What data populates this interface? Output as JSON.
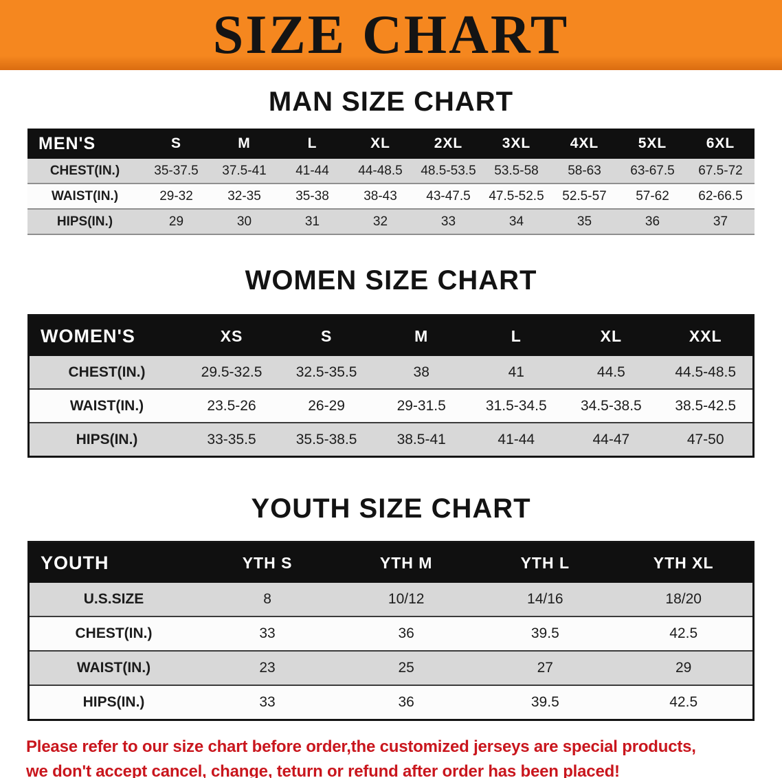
{
  "banner": {
    "title": "SIZE CHART",
    "bg_color": "#f5871f",
    "text_color": "#141414"
  },
  "chart_data": [
    {
      "type": "table",
      "title": "MAN SIZE CHART",
      "columns": [
        "MEN'S",
        "S",
        "M",
        "L",
        "XL",
        "2XL",
        "3XL",
        "4XL",
        "5XL",
        "6XL"
      ],
      "rows": [
        [
          "CHEST(IN.)",
          "35-37.5",
          "37.5-41",
          "41-44",
          "44-48.5",
          "48.5-53.5",
          "53.5-58",
          "58-63",
          "63-67.5",
          "67.5-72"
        ],
        [
          "WAIST(IN.)",
          "29-32",
          "32-35",
          "35-38",
          "38-43",
          "43-47.5",
          "47.5-52.5",
          "52.5-57",
          "57-62",
          "62-66.5"
        ],
        [
          "HIPS(IN.)",
          "29",
          "30",
          "31",
          "32",
          "33",
          "34",
          "35",
          "36",
          "37"
        ]
      ]
    },
    {
      "type": "table",
      "title": "WOMEN SIZE CHART",
      "columns": [
        "WOMEN'S",
        "XS",
        "S",
        "M",
        "L",
        "XL",
        "XXL"
      ],
      "rows": [
        [
          "CHEST(IN.)",
          "29.5-32.5",
          "32.5-35.5",
          "38",
          "41",
          "44.5",
          "44.5-48.5"
        ],
        [
          "WAIST(IN.)",
          "23.5-26",
          "26-29",
          "29-31.5",
          "31.5-34.5",
          "34.5-38.5",
          "38.5-42.5"
        ],
        [
          "HIPS(IN.)",
          "33-35.5",
          "35.5-38.5",
          "38.5-41",
          "41-44",
          "44-47",
          "47-50"
        ]
      ]
    },
    {
      "type": "table",
      "title": "YOUTH SIZE CHART",
      "columns": [
        "YOUTH",
        "YTH S",
        "YTH M",
        "YTH L",
        "YTH XL"
      ],
      "rows": [
        [
          "U.S.SIZE",
          "8",
          "10/12",
          "14/16",
          "18/20"
        ],
        [
          "CHEST(IN.)",
          "33",
          "36",
          "39.5",
          "42.5"
        ],
        [
          "WAIST(IN.)",
          "23",
          "25",
          "27",
          "29"
        ],
        [
          "HIPS(IN.)",
          "33",
          "36",
          "39.5",
          "42.5"
        ]
      ]
    }
  ],
  "footer": {
    "line1": "Please refer to our size chart before order,the customized jerseys are special products,",
    "line2": "we don't accept cancel, change, teturn or refund after order has been placed!",
    "color": "#c9161d"
  }
}
